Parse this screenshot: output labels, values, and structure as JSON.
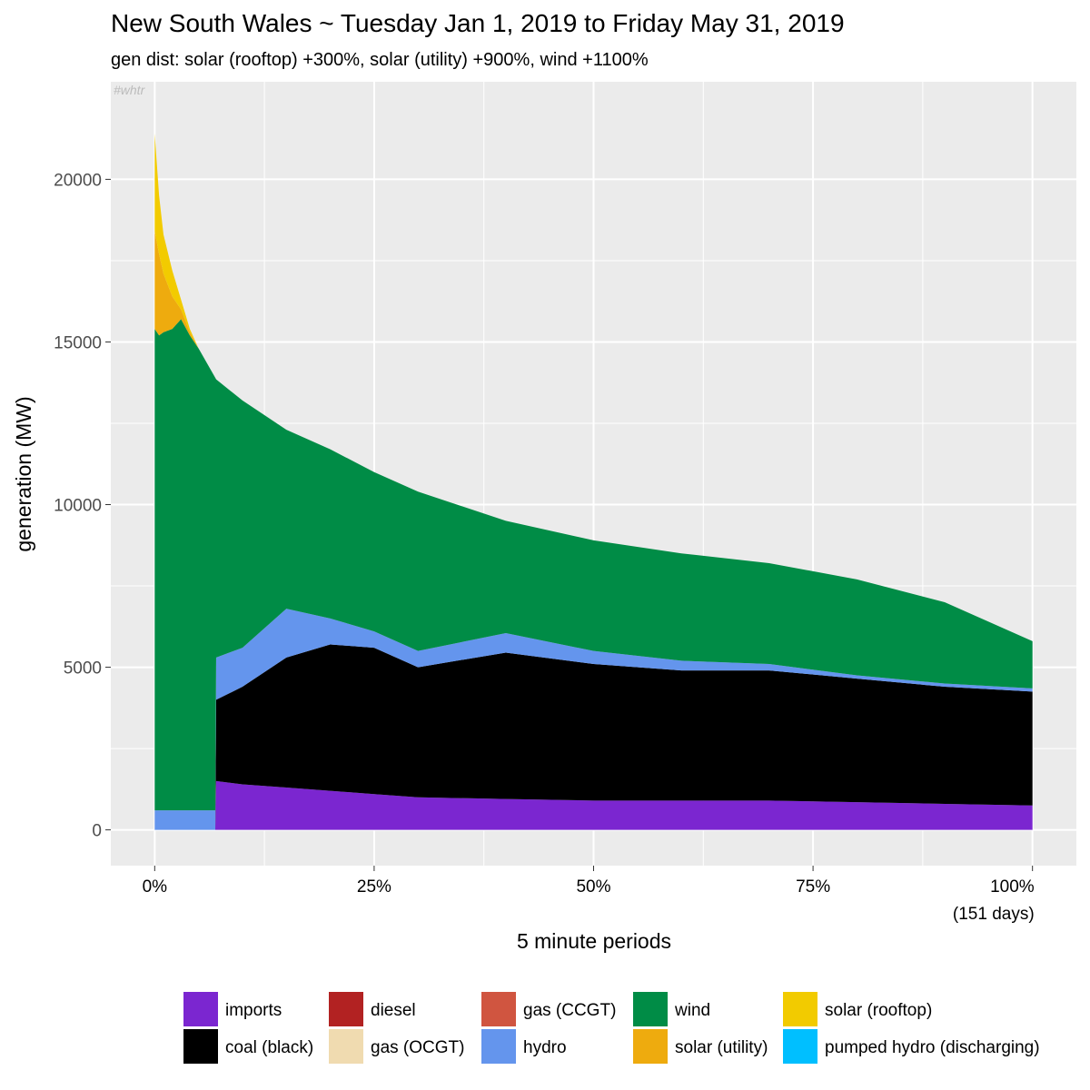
{
  "chart_data": {
    "type": "area",
    "stacked": true,
    "title": "New South Wales ~ Tuesday Jan 1, 2019 to Friday May 31, 2019",
    "subtitle": "gen dist: solar (rooftop) +300%, solar (utility) +900%, wind +1100%",
    "watermark": "#whtr",
    "x_label": "5 minute periods",
    "y_label": "generation (MW)",
    "xlim": [
      -5,
      105
    ],
    "ylim": [
      -1100,
      23000
    ],
    "xticks": [
      {
        "value": 0,
        "label": "0%"
      },
      {
        "value": 25,
        "label": "25%"
      },
      {
        "value": 50,
        "label": "50%"
      },
      {
        "value": 75,
        "label": "75%"
      },
      {
        "value": 100,
        "label": "100%\n(151 days)"
      }
    ],
    "xticks_minor": [
      12.5,
      37.5,
      62.5,
      87.5
    ],
    "yticks": [
      0,
      5000,
      10000,
      15000,
      20000
    ],
    "yticks_minor": [
      2500,
      7500,
      12500,
      17500
    ],
    "grid": true,
    "legend_position": "bottom",
    "x": [
      0,
      0.5,
      1,
      2,
      3,
      4,
      5,
      6.9,
      7,
      10,
      15,
      20,
      25,
      30,
      40,
      50,
      60,
      70,
      80,
      90,
      100
    ],
    "series": [
      {
        "name": "imports",
        "color": "#7b26d0",
        "values": [
          0,
          0,
          0,
          0,
          0,
          0,
          0,
          0,
          1500,
          1400,
          1300,
          1200,
          1100,
          1000,
          950,
          900,
          900,
          900,
          850,
          800,
          750
        ]
      },
      {
        "name": "coal (black)",
        "color": "#000000",
        "values": [
          0,
          0,
          0,
          0,
          0,
          0,
          0,
          0,
          2500,
          3000,
          4000,
          4500,
          4500,
          4000,
          4500,
          4200,
          4000,
          4000,
          3800,
          3600,
          3500
        ]
      },
      {
        "name": "diesel",
        "color": "#b22222",
        "values": [
          0,
          0,
          0,
          0,
          0,
          0,
          0,
          0,
          0,
          0,
          0,
          0,
          0,
          0,
          0,
          0,
          0,
          0,
          0,
          0,
          0
        ]
      },
      {
        "name": "gas (OCGT)",
        "color": "#f0dbb0",
        "values": [
          0,
          0,
          0,
          0,
          0,
          0,
          0,
          0,
          0,
          0,
          0,
          0,
          0,
          0,
          0,
          0,
          0,
          0,
          0,
          0,
          0
        ]
      },
      {
        "name": "gas (CCGT)",
        "color": "#d05540",
        "values": [
          0,
          0,
          0,
          0,
          0,
          0,
          0,
          0,
          0,
          0,
          0,
          0,
          0,
          0,
          0,
          0,
          0,
          0,
          0,
          0,
          0
        ]
      },
      {
        "name": "hydro",
        "color": "#6495ed",
        "values": [
          600,
          600,
          600,
          600,
          600,
          600,
          600,
          600,
          1300,
          1200,
          1500,
          800,
          500,
          500,
          600,
          400,
          300,
          200,
          100,
          100,
          100
        ]
      },
      {
        "name": "wind",
        "color": "#008c46",
        "values": [
          14800,
          14600,
          14700,
          14800,
          15100,
          14600,
          14200,
          13300,
          8550,
          7600,
          5500,
          5200,
          4900,
          4900,
          3450,
          3400,
          3300,
          3100,
          2950,
          2500,
          1450
        ]
      },
      {
        "name": "solar (utility)",
        "color": "#eeab0e",
        "values": [
          3000,
          2500,
          1800,
          1000,
          300,
          100,
          0,
          0,
          0,
          0,
          0,
          0,
          0,
          0,
          0,
          0,
          0,
          0,
          0,
          0,
          0
        ]
      },
      {
        "name": "solar (rooftop)",
        "color": "#f2cb00",
        "values": [
          3000,
          1800,
          1200,
          800,
          300,
          100,
          0,
          0,
          0,
          0,
          0,
          0,
          0,
          0,
          0,
          0,
          0,
          0,
          0,
          0,
          0
        ]
      },
      {
        "name": "pumped hydro (discharging)",
        "color": "#00bfff",
        "values": [
          0,
          0,
          0,
          0,
          0,
          0,
          0,
          0,
          0,
          0,
          0,
          0,
          0,
          0,
          0,
          0,
          0,
          0,
          0,
          0,
          0
        ]
      }
    ]
  }
}
